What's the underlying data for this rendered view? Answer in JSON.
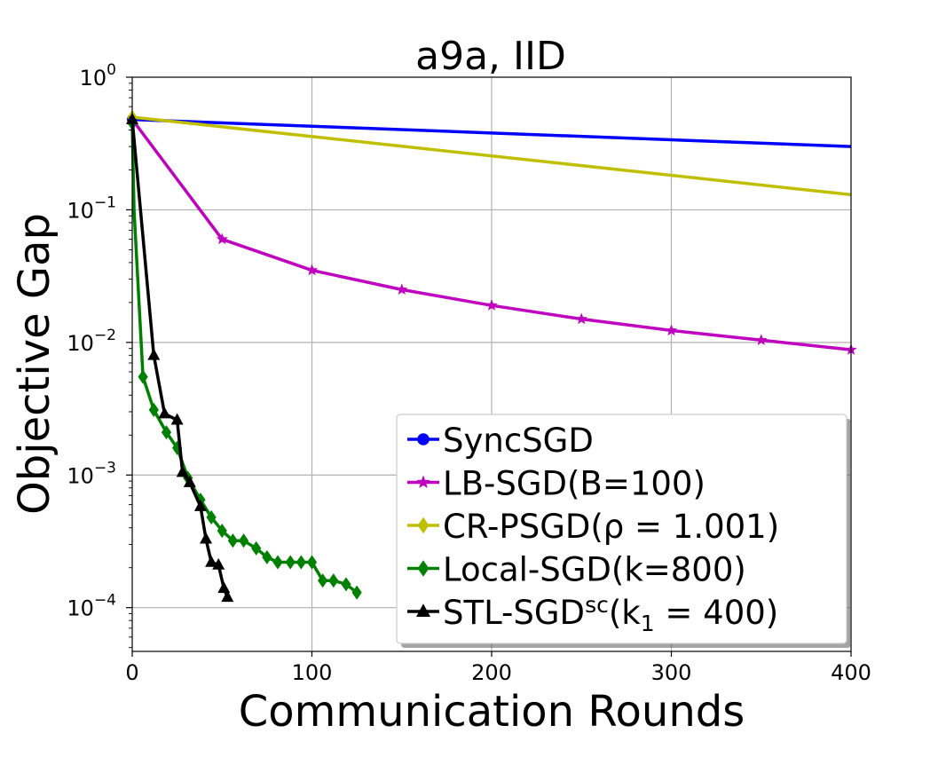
{
  "chart_data": {
    "type": "line",
    "title": "a9a, IID",
    "xlabel": "Communication Rounds",
    "ylabel": "Objective Gap",
    "xlim": [
      0,
      400
    ],
    "ylim_log10": [
      -4.33,
      0
    ],
    "yscale": "log",
    "grid": true,
    "legend_position": "bottom-right",
    "x_ticks": [
      0,
      100,
      200,
      300,
      400
    ],
    "y_ticks": [
      {
        "exp": 0,
        "base": "10",
        "sup": "0"
      },
      {
        "exp": -1,
        "base": "10",
        "sup": "−1"
      },
      {
        "exp": -2,
        "base": "10",
        "sup": "−2"
      },
      {
        "exp": -3,
        "base": "10",
        "sup": "−3"
      },
      {
        "exp": -4,
        "base": "10",
        "sup": "−4"
      }
    ],
    "series": [
      {
        "name": "SyncSGD",
        "color": "#0000ff",
        "marker": "circle",
        "x": [
          0,
          400
        ],
        "y": [
          0.48,
          0.3
        ],
        "marker_x": [
          0
        ]
      },
      {
        "name": "LB-SGD(B=100)",
        "color": "#bf00bf",
        "marker": "star",
        "x": [
          0,
          50,
          100,
          150,
          200,
          250,
          300,
          350,
          400
        ],
        "y": [
          0.48,
          0.06,
          0.035,
          0.025,
          0.019,
          0.015,
          0.0123,
          0.0104,
          0.0088
        ],
        "marker_x": [
          50,
          100,
          150,
          200,
          250,
          300,
          350,
          400
        ]
      },
      {
        "name": "CR-PSGD(ρ = 1.001)",
        "color": "#bfbf00",
        "marker": "diamond",
        "x": [
          0,
          400
        ],
        "y": [
          0.5,
          0.13
        ],
        "marker_x": [
          0
        ]
      },
      {
        "name": "Local-SGD(k=800)",
        "color": "#008000",
        "marker": "diamond",
        "x": [
          0,
          1,
          6,
          12,
          19,
          25,
          31,
          38,
          44,
          50,
          56,
          62,
          69,
          75,
          81,
          88,
          94,
          100,
          106,
          112,
          119,
          125
        ],
        "y": [
          0.45,
          0.1,
          0.0055,
          0.0031,
          0.0021,
          0.0016,
          0.00095,
          0.00065,
          0.00048,
          0.00038,
          0.00032,
          0.00032,
          0.00028,
          0.00024,
          0.00022,
          0.00022,
          0.00022,
          0.00022,
          0.00016,
          0.00016,
          0.00015,
          0.00013
        ],
        "marker_x": [
          0,
          6,
          12,
          19,
          25,
          31,
          38,
          44,
          50,
          56,
          62,
          69,
          75,
          81,
          88,
          94,
          100,
          106,
          112,
          119,
          125
        ]
      },
      {
        "name": "STL-SGDsc(k1 = 400)",
        "color": "#000000",
        "marker": "triangle",
        "x": [
          0,
          12,
          18,
          25,
          28,
          32,
          38,
          41,
          44,
          48,
          51,
          53
        ],
        "y": [
          0.48,
          0.008,
          0.0029,
          0.0026,
          0.00105,
          0.00088,
          0.00058,
          0.00033,
          0.00022,
          0.00021,
          0.00014,
          0.00012
        ],
        "marker_x": [
          0,
          12,
          18,
          25,
          28,
          32,
          38,
          41,
          44,
          48,
          51,
          53
        ]
      }
    ],
    "legend": [
      {
        "text": "SyncSGD"
      },
      {
        "text": "LB-SGD(B=100)"
      },
      {
        "text": "CR-PSGD(ρ = 1.001)"
      },
      {
        "text": "Local-SGD(k=800)"
      },
      {
        "text_main": "STL-SGD",
        "text_sup": "sc",
        "text_mid": "(k",
        "text_sub": "1",
        "text_tail": " = 400)"
      }
    ]
  }
}
